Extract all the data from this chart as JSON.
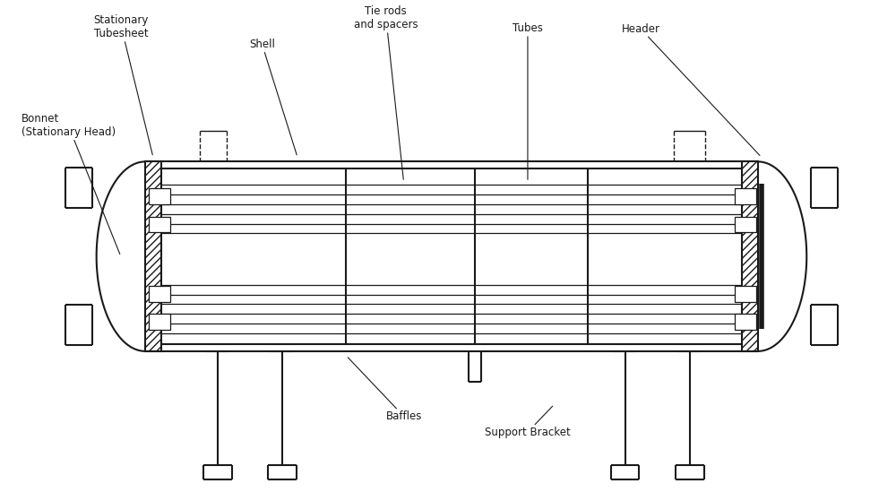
{
  "line_color": "#1a1a1a",
  "font_size": 8.5,
  "labels": {
    "stationary_tubesheet": "Stationary\nTubesheet",
    "bonnet": "Bonnet\n(Stationary Head)",
    "shell": "Shell",
    "tie_rods": "Tie rods\nand spacers",
    "tubes": "Tubes",
    "header": "Header",
    "baffles": "Baffles",
    "support_bracket": "Support Bracket"
  }
}
